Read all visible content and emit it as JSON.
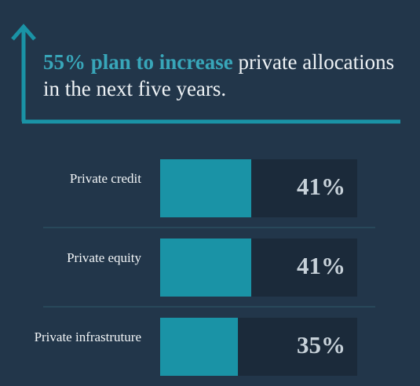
{
  "chart_data": {
    "type": "bar",
    "orientation": "horizontal",
    "title_emphasis": "55% plan to increase",
    "title": "private allocations in the next five years.",
    "categories": [
      "Private credit",
      "Private equity",
      "Private infrastruture"
    ],
    "values": [
      41,
      41,
      35
    ],
    "value_labels": [
      "41%",
      "41%",
      "35%"
    ],
    "color": "#1a93a6"
  }
}
